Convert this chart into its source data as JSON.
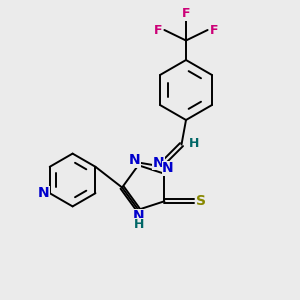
{
  "bg_color": "#ebebeb",
  "atom_colors": {
    "C": "#000000",
    "N": "#0000cc",
    "S": "#888800",
    "F": "#cc0077",
    "H": "#006666"
  },
  "bond_color": "#000000",
  "bond_width": 1.4,
  "font_size": 10,
  "fig_size": [
    3.0,
    3.0
  ],
  "dpi": 100,
  "xlim": [
    0,
    10
  ],
  "ylim": [
    0,
    10
  ]
}
